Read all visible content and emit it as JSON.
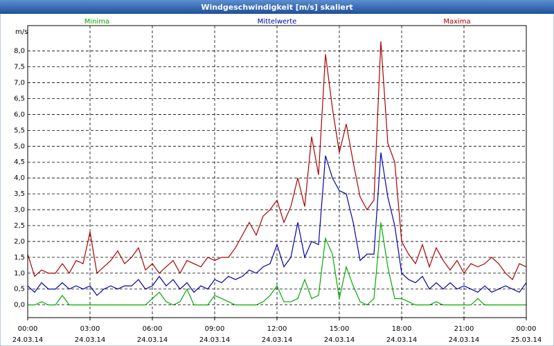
{
  "chart_data": {
    "type": "line",
    "title": "Windgeschwindigkeit [m/s] skaliert",
    "y_label": "m/s",
    "x": [
      0,
      20,
      40,
      60,
      80,
      100,
      120,
      140,
      160,
      180,
      200,
      220,
      240,
      260,
      280,
      300,
      320,
      340,
      360,
      380,
      400,
      420,
      440,
      460,
      480,
      500,
      520,
      540,
      560,
      580,
      600,
      620,
      640,
      660,
      680,
      700,
      720,
      740,
      760,
      780,
      800,
      820,
      840,
      860,
      880,
      900,
      920,
      940,
      960,
      980,
      1000,
      1020,
      1040,
      1060,
      1080,
      1100,
      1120,
      1140,
      1160,
      1180,
      1200,
      1220,
      1240,
      1260,
      1280,
      1300,
      1320,
      1340,
      1360,
      1380,
      1400,
      1420,
      1440
    ],
    "xlim": [
      0,
      1440
    ],
    "xticks": [
      {
        "value": 0,
        "label": "00:00",
        "date": "24.03.14"
      },
      {
        "value": 180,
        "label": "03:00",
        "date": "24.03.14"
      },
      {
        "value": 360,
        "label": "06:00",
        "date": "24.03.14"
      },
      {
        "value": 540,
        "label": "09:00",
        "date": "24.03.14"
      },
      {
        "value": 720,
        "label": "12:00",
        "date": "24.03.14"
      },
      {
        "value": 900,
        "label": "15:00",
        "date": "24.03.14"
      },
      {
        "value": 1080,
        "label": "18:00",
        "date": "24.03.14"
      },
      {
        "value": 1260,
        "label": "21:00",
        "date": "24.03.14"
      },
      {
        "value": 1440,
        "label": "00:00",
        "date": "25.03.14"
      }
    ],
    "ylim": [
      -0.4,
      8.8
    ],
    "yticks": [
      {
        "value": 0,
        "label": "0,0"
      },
      {
        "value": 0.5,
        "label": "0,5"
      },
      {
        "value": 1,
        "label": "1,0"
      },
      {
        "value": 1.5,
        "label": "1,5"
      },
      {
        "value": 2,
        "label": "2,0"
      },
      {
        "value": 2.5,
        "label": "2,5"
      },
      {
        "value": 3,
        "label": "3,0"
      },
      {
        "value": 3.5,
        "label": "3,5"
      },
      {
        "value": 4,
        "label": "4,0"
      },
      {
        "value": 4.5,
        "label": "4,5"
      },
      {
        "value": 5,
        "label": "5,0"
      },
      {
        "value": 5.5,
        "label": "5,5"
      },
      {
        "value": 6,
        "label": "6,0"
      },
      {
        "value": 6.5,
        "label": "6,5"
      },
      {
        "value": 7,
        "label": "7,0"
      },
      {
        "value": 7.5,
        "label": "7,5"
      },
      {
        "value": 8,
        "label": "8,0"
      }
    ],
    "grid": true,
    "series": [
      {
        "name": "Minima",
        "color": "#00aa00",
        "values": [
          0,
          0,
          0.1,
          0,
          0,
          0.3,
          0,
          0,
          0,
          0,
          0,
          0,
          0,
          0,
          0,
          0,
          0,
          0,
          0.2,
          0.4,
          0.1,
          0,
          0.1,
          0.5,
          0,
          0,
          0,
          0.3,
          0.2,
          0.1,
          0,
          0,
          0,
          0,
          0.1,
          0.3,
          0.6,
          0.1,
          0.1,
          0.2,
          0.8,
          0.2,
          0.3,
          2.1,
          1.6,
          0.2,
          1.2,
          0.6,
          0.1,
          0,
          0.2,
          2.6,
          1.2,
          0.2,
          0.2,
          0.1,
          0,
          0,
          0,
          0.1,
          0,
          0,
          0,
          0,
          0,
          0.2,
          0,
          0,
          0,
          0,
          0,
          0,
          0
        ]
      },
      {
        "name": "Mittelwerte",
        "color": "#0000aa",
        "values": [
          0.6,
          0.4,
          0.7,
          0.5,
          0.5,
          0.7,
          0.5,
          0.6,
          0.5,
          0.6,
          0.3,
          0.5,
          0.6,
          0.5,
          0.6,
          0.6,
          0.8,
          0.5,
          0.6,
          0.9,
          0.6,
          0.8,
          0.5,
          0.7,
          0.4,
          0.6,
          0.5,
          0.8,
          0.7,
          0.9,
          0.8,
          0.9,
          1.1,
          1.0,
          1.2,
          1.3,
          1.9,
          1.2,
          1.5,
          2.6,
          1.5,
          2.0,
          1.9,
          4.7,
          4.0,
          3.6,
          3.5,
          2.6,
          1.4,
          1.6,
          1.6,
          4.8,
          3.4,
          2.5,
          1.0,
          0.8,
          0.7,
          0.9,
          0.5,
          0.7,
          0.5,
          0.7,
          0.5,
          0.6,
          0.5,
          0.4,
          0.6,
          0.4,
          0.5,
          0.6,
          0.5,
          0.4,
          0.7
        ]
      },
      {
        "name": "Maxima",
        "color": "#aa0000",
        "values": [
          1.6,
          0.9,
          1.1,
          1.0,
          1.0,
          1.3,
          1.0,
          1.4,
          1.3,
          2.3,
          1.0,
          1.2,
          1.4,
          1.7,
          1.3,
          1.5,
          1.8,
          1.1,
          1.3,
          1.0,
          1.2,
          1.4,
          1.0,
          1.4,
          1.3,
          1.2,
          1.5,
          1.4,
          1.5,
          1.5,
          1.8,
          2.2,
          2.6,
          2.2,
          2.8,
          3.0,
          3.3,
          2.6,
          3.1,
          4.0,
          3.1,
          5.3,
          4.1,
          7.9,
          6.2,
          4.8,
          5.7,
          4.5,
          3.4,
          3.0,
          3.3,
          8.3,
          5.1,
          4.5,
          2.0,
          1.6,
          1.3,
          1.9,
          1.2,
          1.8,
          1.4,
          1.1,
          1.4,
          1.0,
          1.3,
          1.2,
          1.3,
          1.5,
          1.3,
          1.0,
          0.8,
          1.3,
          1.2
        ]
      }
    ]
  }
}
